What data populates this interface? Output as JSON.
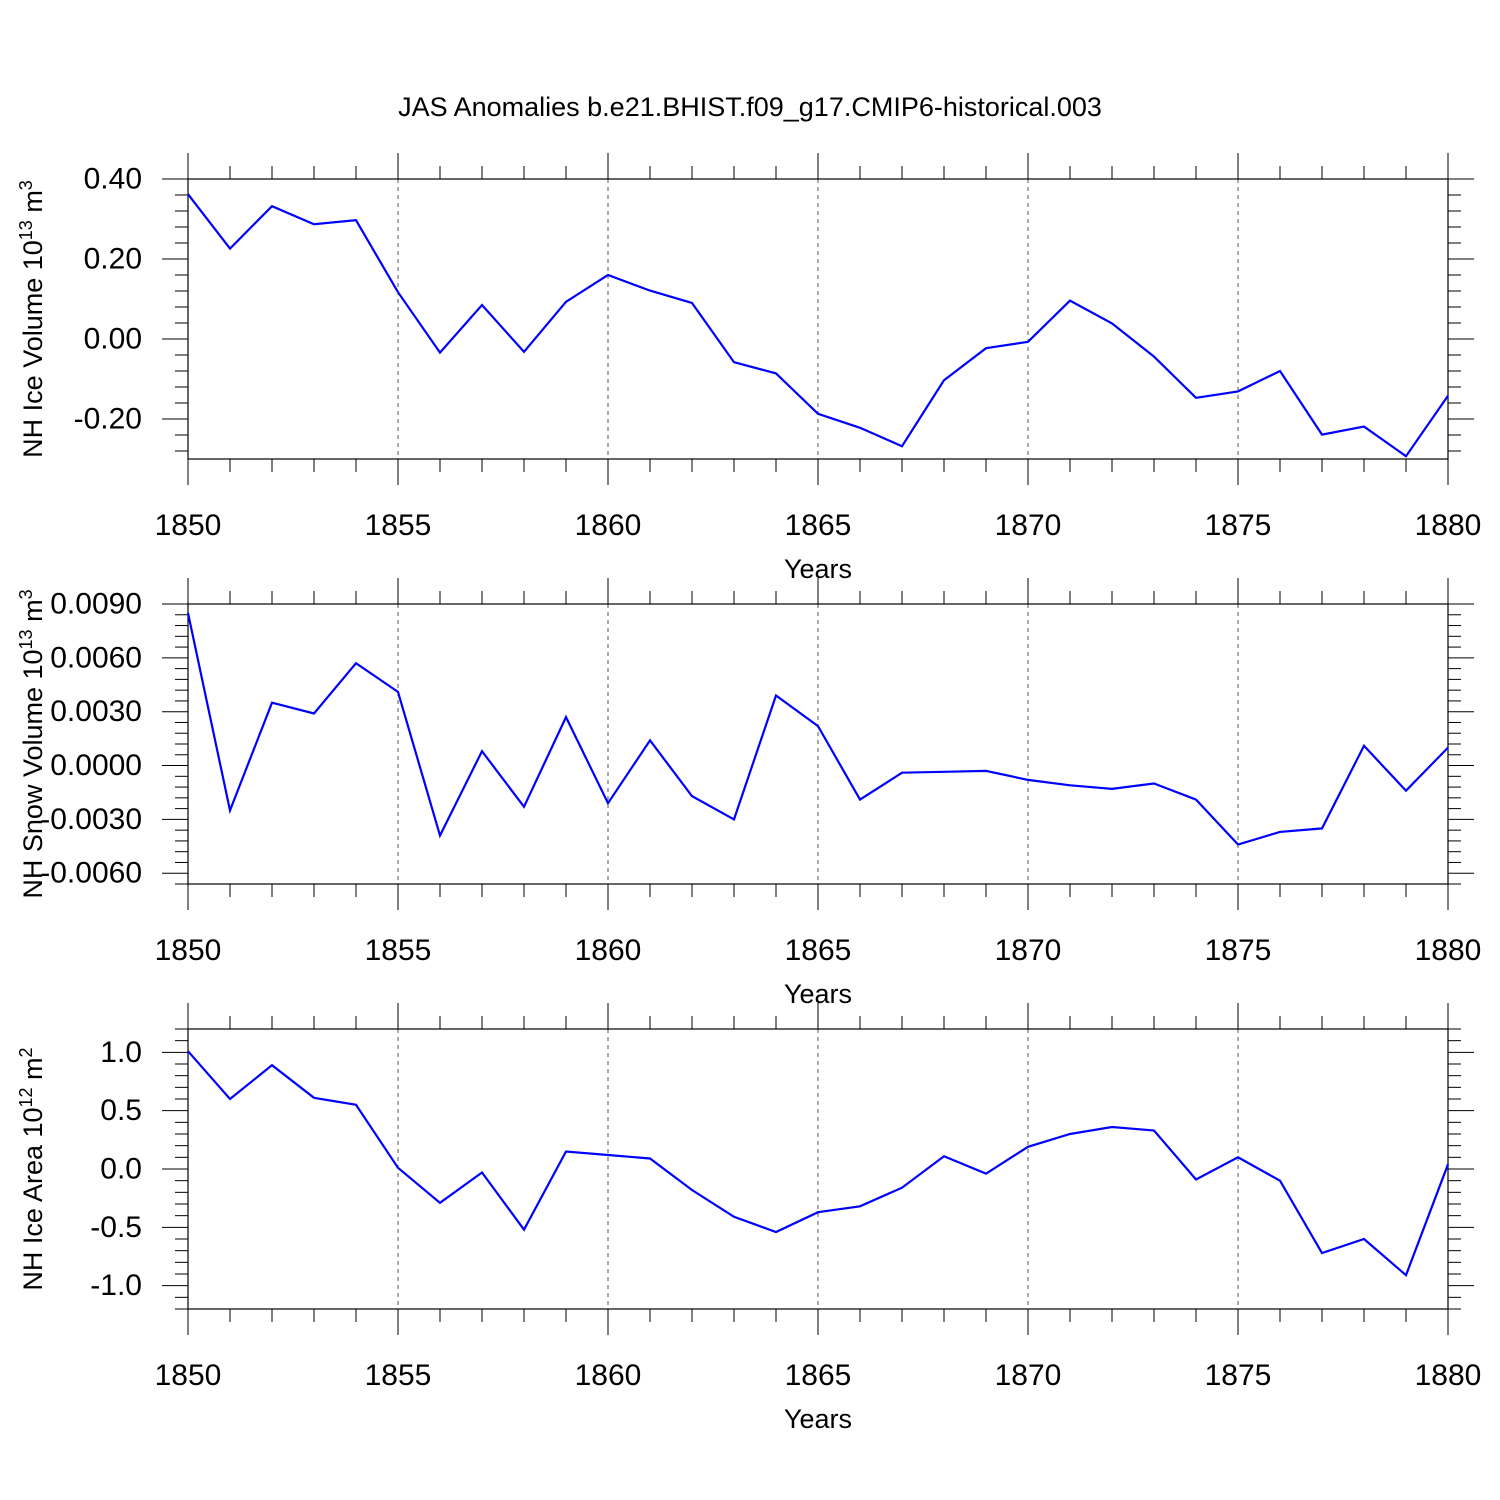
{
  "title": "JAS Anomalies b.e21.BHIST.f09_g17.CMIP6-historical.003",
  "chart_data": [
    {
      "type": "line",
      "name": "ice-volume",
      "xlabel": "Years",
      "ylabel": "NH Ice Volume 10",
      "ylabel_exp": "13",
      "ylabel_unit": "m",
      "ylabel_unit_exp": "3",
      "xlim": [
        1850,
        1880
      ],
      "ylim": [
        -0.3,
        0.4
      ],
      "xticks": [
        1850,
        1855,
        1860,
        1865,
        1870,
        1875,
        1880
      ],
      "xtick_labels": [
        "1850",
        "1855",
        "1860",
        "1865",
        "1870",
        "1875",
        "1880"
      ],
      "yticks": [
        0.4,
        0.2,
        0.0,
        -0.2
      ],
      "ytick_labels": [
        "0.40",
        "0.20",
        "0.00",
        "-0.20"
      ],
      "series": [
        {
          "name": "NH Ice Volume",
          "color": "#0000ff",
          "x": [
            1850,
            1851,
            1852,
            1853,
            1854,
            1855,
            1856,
            1857,
            1858,
            1859,
            1860,
            1861,
            1862,
            1863,
            1864,
            1865,
            1866,
            1867,
            1868,
            1869,
            1870,
            1871,
            1872,
            1873,
            1874,
            1875,
            1876,
            1877,
            1878,
            1879,
            1880
          ],
          "values": [
            0.362,
            0.226,
            0.332,
            0.287,
            0.297,
            0.117,
            -0.034,
            0.085,
            -0.032,
            0.093,
            0.16,
            0.121,
            0.09,
            -0.058,
            -0.086,
            -0.187,
            -0.222,
            -0.268,
            -0.103,
            -0.023,
            -0.007,
            0.096,
            0.039,
            -0.044,
            -0.147,
            -0.131,
            -0.08,
            -0.239,
            -0.219,
            -0.293,
            -0.142
          ]
        }
      ]
    },
    {
      "type": "line",
      "name": "snow-volume",
      "xlabel": "Years",
      "ylabel": "NH Snow Volume 10",
      "ylabel_exp": "13",
      "ylabel_unit": "m",
      "ylabel_unit_exp": "3",
      "xlim": [
        1850,
        1880
      ],
      "ylim": [
        -0.0066,
        0.009
      ],
      "xticks": [
        1850,
        1855,
        1860,
        1865,
        1870,
        1875,
        1880
      ],
      "xtick_labels": [
        "1850",
        "1855",
        "1860",
        "1865",
        "1870",
        "1875",
        "1880"
      ],
      "yticks": [
        0.009,
        0.006,
        0.003,
        0.0,
        -0.003,
        -0.006
      ],
      "ytick_labels": [
        "0.0090",
        "0.0060",
        "0.0030",
        "0.0000",
        "-0.0030",
        "-0.0060"
      ],
      "series": [
        {
          "name": "NH Snow Volume",
          "color": "#0000ff",
          "x": [
            1850,
            1851,
            1852,
            1853,
            1854,
            1855,
            1856,
            1857,
            1858,
            1859,
            1860,
            1861,
            1862,
            1863,
            1864,
            1865,
            1866,
            1867,
            1868,
            1869,
            1870,
            1871,
            1872,
            1873,
            1874,
            1875,
            1876,
            1877,
            1878,
            1879,
            1880
          ],
          "values": [
            0.0085,
            -0.0025,
            0.0035,
            0.0029,
            0.0057,
            0.0041,
            -0.0039,
            0.0008,
            -0.0023,
            0.0027,
            -0.0021,
            0.0014,
            -0.0017,
            -0.003,
            0.0039,
            0.0022,
            -0.0019,
            -0.0004,
            -0.00035,
            -0.0003,
            -0.0008,
            -0.0011,
            -0.0013,
            -0.001,
            -0.0019,
            -0.0044,
            -0.0037,
            -0.0035,
            0.0011,
            -0.0014,
            0.001
          ]
        }
      ]
    },
    {
      "type": "line",
      "name": "ice-area",
      "xlabel": "Years",
      "ylabel": "NH Ice Area 10",
      "ylabel_exp": "12",
      "ylabel_unit": "m",
      "ylabel_unit_exp": "2",
      "xlim": [
        1850,
        1880
      ],
      "ylim": [
        -1.2,
        1.2
      ],
      "xticks": [
        1850,
        1855,
        1860,
        1865,
        1870,
        1875,
        1880
      ],
      "xtick_labels": [
        "1850",
        "1855",
        "1860",
        "1865",
        "1870",
        "1875",
        "1880"
      ],
      "yticks": [
        1.0,
        0.5,
        0.0,
        -0.5,
        -1.0
      ],
      "ytick_labels": [
        "1.0",
        "0.5",
        "0.0",
        "-0.5",
        "-1.0"
      ],
      "series": [
        {
          "name": "NH Ice Area",
          "color": "#0000ff",
          "x": [
            1850,
            1851,
            1852,
            1853,
            1854,
            1855,
            1856,
            1857,
            1858,
            1859,
            1860,
            1861,
            1862,
            1863,
            1864,
            1865,
            1866,
            1867,
            1868,
            1869,
            1870,
            1871,
            1872,
            1873,
            1874,
            1875,
            1876,
            1877,
            1878,
            1879,
            1880
          ],
          "values": [
            1.01,
            0.6,
            0.89,
            0.61,
            0.55,
            0.01,
            -0.29,
            -0.03,
            -0.52,
            0.15,
            0.12,
            0.09,
            -0.18,
            -0.41,
            -0.54,
            -0.37,
            -0.32,
            -0.16,
            0.11,
            -0.04,
            0.19,
            0.3,
            0.36,
            0.33,
            -0.09,
            0.1,
            -0.1,
            -0.72,
            -0.6,
            -0.91,
            0.04
          ]
        }
      ]
    }
  ]
}
